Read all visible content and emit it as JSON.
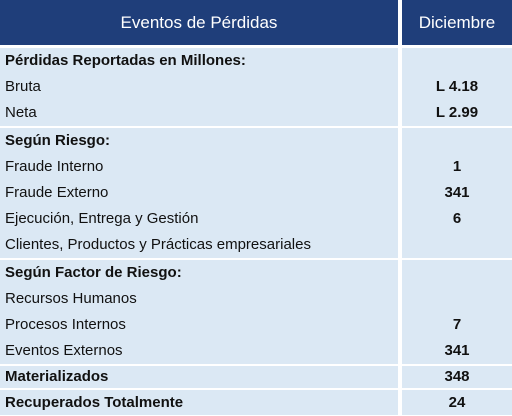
{
  "header": {
    "label": "Eventos de Pérdidas",
    "month": "Diciembre"
  },
  "sections": {
    "losses": {
      "title": "Pérdidas Reportadas en Millones:",
      "bruta_label": "Bruta",
      "bruta_value": "L 4.18",
      "neta_label": "Neta",
      "neta_value": "L 2.99"
    },
    "risk": {
      "title": "Según Riesgo:",
      "r1_label": "Fraude Interno",
      "r1_value": "1",
      "r2_label": "Fraude Externo",
      "r2_value": "341",
      "r3_label": "Ejecución, Entrega y Gestión",
      "r3_value": "6",
      "r4_label": "Clientes, Productos y Prácticas empresariales",
      "r4_value": ""
    },
    "factor": {
      "title": "Según Factor de Riesgo:",
      "f1_label": "Recursos Humanos",
      "f1_value": "",
      "f2_label": "Procesos Internos",
      "f2_value": "7",
      "f3_label": "Eventos Externos",
      "f3_value": "341"
    },
    "materializados": {
      "label": "Materializados",
      "value": "348"
    },
    "recuperados": {
      "label": "Recuperados Totalmente",
      "value": "24"
    }
  }
}
